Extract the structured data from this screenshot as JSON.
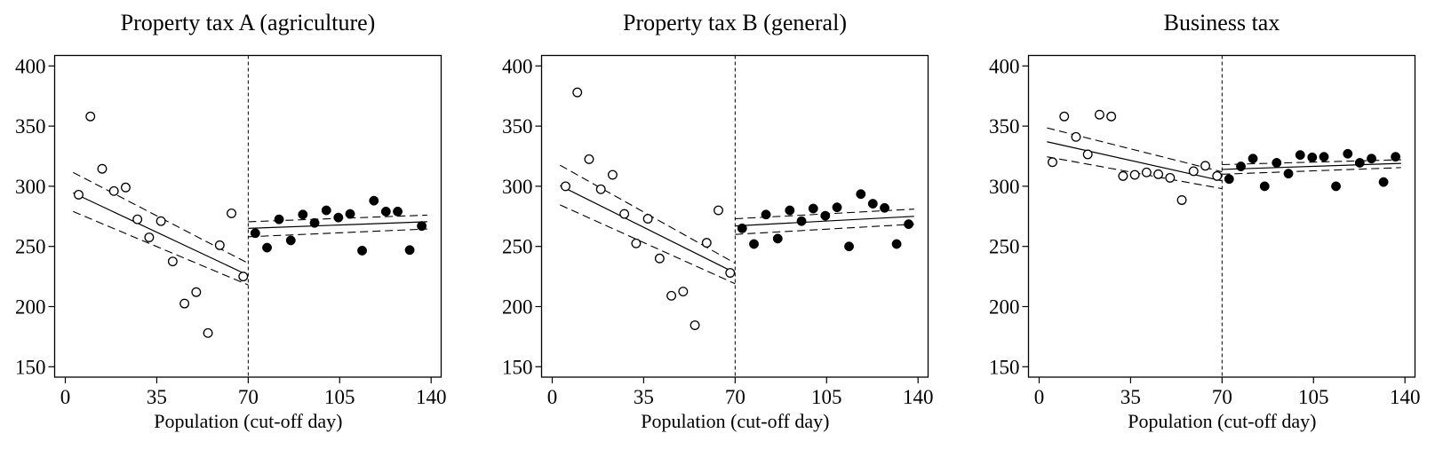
{
  "chart_data": [
    {
      "type": "scatter",
      "title": "Property tax A (agriculture)",
      "xlabel": "Population (cut-off day)",
      "ylabel": "",
      "xlim": [
        -3,
        145
      ],
      "ylim": [
        141.5,
        408.5
      ],
      "xticks": [
        0,
        35,
        70,
        105,
        140
      ],
      "yticks": [
        150,
        200,
        250,
        300,
        350,
        400
      ],
      "cutoff": 70,
      "series": [
        {
          "name": "below cutoff",
          "marker": "open-circle",
          "x": [
            5.1,
            9.6,
            14.1,
            18.6,
            23.1,
            27.6,
            32.1,
            36.6,
            41.1,
            45.6,
            50.1,
            54.6,
            59.1,
            63.6,
            68.1
          ],
          "y": [
            293,
            358,
            314.5,
            296,
            299,
            272.5,
            257.5,
            271,
            237.5,
            202.5,
            212,
            178,
            251,
            277.5,
            225
          ]
        },
        {
          "name": "above cutoff",
          "marker": "filled-circle",
          "x": [
            72.7,
            77.2,
            81.8,
            86.3,
            90.9,
            95.4,
            99.9,
            104.5,
            109,
            113.6,
            118.1,
            122.7,
            127.2,
            131.8,
            136.4
          ],
          "y": [
            261,
            249,
            272.5,
            255,
            276.5,
            269.5,
            280,
            274,
            277,
            246.5,
            288,
            279,
            279,
            247,
            267
          ]
        }
      ],
      "fits": [
        {
          "name": "fit-left",
          "style": "solid",
          "x": [
            3,
            70
          ],
          "y": [
            294.5,
            226
          ]
        },
        {
          "name": "ci-upper-left",
          "style": "dashed",
          "x": [
            3,
            70
          ],
          "y": [
            311.5,
            236
          ]
        },
        {
          "name": "ci-lower-left",
          "style": "dashed",
          "x": [
            3,
            70
          ],
          "y": [
            279,
            218
          ]
        },
        {
          "name": "fit-right",
          "style": "solid",
          "x": [
            70,
            138.5
          ],
          "y": [
            265,
            270.5
          ]
        },
        {
          "name": "ci-upper-right",
          "style": "dashed",
          "x": [
            70,
            138.5
          ],
          "y": [
            270.5,
            276
          ]
        },
        {
          "name": "ci-lower-right",
          "style": "dashed",
          "x": [
            70,
            138.5
          ],
          "y": [
            258,
            264.5
          ]
        }
      ]
    },
    {
      "type": "scatter",
      "title": "Property tax B (general)",
      "xlabel": "Population (cut-off day)",
      "ylabel": "",
      "xlim": [
        -3,
        145
      ],
      "ylim": [
        141.5,
        408.5
      ],
      "xticks": [
        0,
        35,
        70,
        105,
        140
      ],
      "yticks": [
        150,
        200,
        250,
        300,
        350,
        400
      ],
      "cutoff": 70,
      "series": [
        {
          "name": "below cutoff",
          "marker": "open-circle",
          "x": [
            5.1,
            9.6,
            14.1,
            18.6,
            23.1,
            27.6,
            32.1,
            36.6,
            41.1,
            45.6,
            50.1,
            54.6,
            59.1,
            63.6,
            68.1
          ],
          "y": [
            300,
            378,
            322.5,
            297.5,
            309.5,
            277,
            252.5,
            273,
            240,
            209,
            212.5,
            184.5,
            253,
            280,
            228
          ]
        },
        {
          "name": "above cutoff",
          "marker": "filled-circle",
          "x": [
            72.7,
            77.2,
            81.8,
            86.3,
            90.9,
            95.4,
            99.9,
            104.5,
            109,
            113.6,
            118.1,
            122.7,
            127.2,
            131.8,
            136.4
          ],
          "y": [
            265,
            252,
            276.5,
            256.5,
            280,
            271,
            281.5,
            275.5,
            282.5,
            250,
            293.5,
            285.5,
            282,
            252,
            268.5
          ]
        }
      ],
      "fits": [
        {
          "name": "fit-left",
          "style": "solid",
          "x": [
            3,
            70
          ],
          "y": [
            300.5,
            228
          ]
        },
        {
          "name": "ci-upper-left",
          "style": "dashed",
          "x": [
            3,
            70
          ],
          "y": [
            317.5,
            236
          ]
        },
        {
          "name": "ci-lower-left",
          "style": "dashed",
          "x": [
            3,
            70
          ],
          "y": [
            284.5,
            219
          ]
        },
        {
          "name": "fit-right",
          "style": "solid",
          "x": [
            70,
            138.5
          ],
          "y": [
            267,
            275
          ]
        },
        {
          "name": "ci-upper-right",
          "style": "dashed",
          "x": [
            70,
            138.5
          ],
          "y": [
            273,
            281
          ]
        },
        {
          "name": "ci-lower-right",
          "style": "dashed",
          "x": [
            70,
            138.5
          ],
          "y": [
            260,
            268.5
          ]
        }
      ]
    },
    {
      "type": "scatter",
      "title": "Business tax",
      "xlabel": "Population (cut-off day)",
      "ylabel": "",
      "xlim": [
        -3,
        145
      ],
      "ylim": [
        141.5,
        408.5
      ],
      "xticks": [
        0,
        35,
        70,
        105,
        140
      ],
      "yticks": [
        150,
        200,
        250,
        300,
        350,
        400
      ],
      "cutoff": 70,
      "series": [
        {
          "name": "below cutoff",
          "marker": "open-circle",
          "x": [
            5.1,
            9.6,
            14.1,
            18.6,
            23.1,
            27.6,
            32.1,
            36.6,
            41.1,
            45.6,
            50.1,
            54.6,
            59.1,
            63.6,
            68.1
          ],
          "y": [
            320,
            358,
            341,
            326.5,
            359.5,
            358,
            308.5,
            309.5,
            311.5,
            310,
            307,
            288.5,
            312.5,
            317,
            308.5
          ]
        },
        {
          "name": "above cutoff",
          "marker": "filled-circle",
          "x": [
            72.7,
            77.2,
            81.8,
            86.3,
            90.9,
            95.4,
            99.9,
            104.5,
            109,
            113.6,
            118.1,
            122.7,
            127.2,
            131.8,
            136.4
          ],
          "y": [
            306,
            316.5,
            323,
            300,
            319.5,
            310.5,
            326,
            324,
            324.5,
            300,
            327,
            319.5,
            323,
            303.5,
            324.5
          ]
        }
      ],
      "fits": [
        {
          "name": "fit-left",
          "style": "solid",
          "x": [
            3,
            70
          ],
          "y": [
            337,
            304.5
          ]
        },
        {
          "name": "ci-upper-left",
          "style": "dashed",
          "x": [
            3,
            70
          ],
          "y": [
            348.5,
            312
          ]
        },
        {
          "name": "ci-lower-left",
          "style": "dashed",
          "x": [
            3,
            70
          ],
          "y": [
            324.5,
            298
          ]
        },
        {
          "name": "fit-right",
          "style": "solid",
          "x": [
            70,
            138.5
          ],
          "y": [
            314,
            319
          ]
        },
        {
          "name": "ci-upper-right",
          "style": "dashed",
          "x": [
            70,
            138.5
          ],
          "y": [
            318,
            322
          ]
        },
        {
          "name": "ci-lower-right",
          "style": "dashed",
          "x": [
            70,
            138.5
          ],
          "y": [
            310,
            315.5
          ]
        }
      ]
    }
  ]
}
